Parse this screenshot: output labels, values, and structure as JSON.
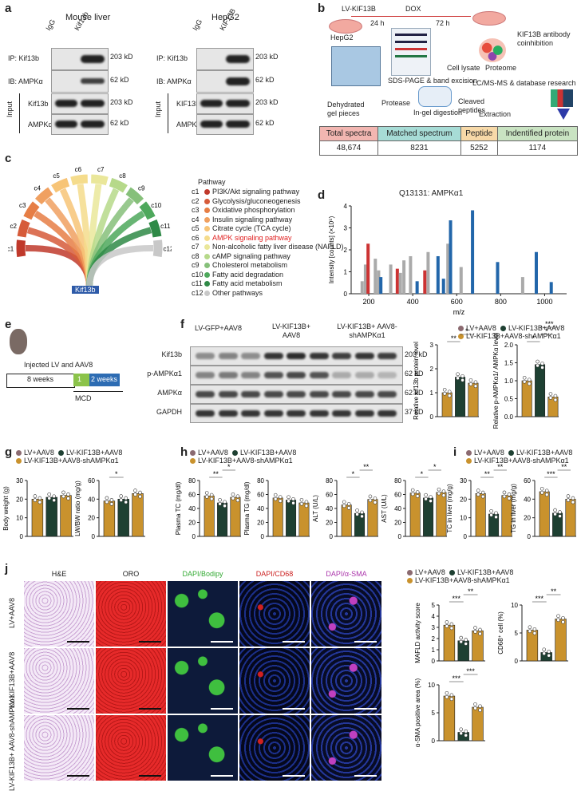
{
  "panel_letters": [
    "a",
    "b",
    "c",
    "d",
    "e",
    "f",
    "g",
    "h",
    "i",
    "j"
  ],
  "a": {
    "left_title": "Mouse liver",
    "right_title": "HepG2",
    "lanes_left": [
      "IgG",
      "Kif13b"
    ],
    "lanes_right": [
      "IgG",
      "KIF13B"
    ],
    "rows_left": [
      "IP: Kif13b",
      "IB: AMPKα",
      "Kif13b",
      "AMPKα"
    ],
    "rows_right": [
      "IP: Kif13b",
      "IB: AMPKα",
      "KIF13B",
      "AMPKα"
    ],
    "sizes": [
      "203 kD",
      "62 kD",
      "203 kD",
      "62 kD"
    ],
    "input_label": "Input"
  },
  "b": {
    "lv": "LV-KIF13B",
    "dox": "DOX",
    "h24": "24 h",
    "h72": "72 h",
    "hepg2": "HepG2",
    "cell_lysate": "Cell lysate",
    "proteome": "Proteome",
    "antibody": "KIF13B antibody coinhibition",
    "sds": "SDS-PAGE & band excision",
    "lcms": "LC/MS-MS & database research",
    "dehyd": "Dehydrated gel pieces",
    "protease": "Protease",
    "ingel": "In-gel digestion",
    "cleaved": "Cleaved peptides",
    "extraction": "Extraction",
    "table_headers": [
      "Total spectra",
      "Matched spectrum",
      "Peptide",
      "Indentified protein"
    ],
    "table_values": [
      "48,674",
      "8231",
      "5252",
      "1174"
    ],
    "table_colors": [
      "#f2b6b1",
      "#a7dcd6",
      "#f7d9a8",
      "#c9e3c2"
    ]
  },
  "c": {
    "center": "Kif13b",
    "pathway_title": "Pathway",
    "items": [
      {
        "id": "c1",
        "label": "PI3K/Akt signaling pathway",
        "color": "#c0392b"
      },
      {
        "id": "c2",
        "label": "Glycolysis/gluconeogenesis",
        "color": "#d65b3a"
      },
      {
        "id": "c3",
        "label": "Oxidative phosphorylation",
        "color": "#e67e45"
      },
      {
        "id": "c4",
        "label": "Insulin signaling pathway",
        "color": "#f0a060"
      },
      {
        "id": "c5",
        "label": "Citrate cycle (TCA cycle)",
        "color": "#f7c477"
      },
      {
        "id": "c6",
        "label": "AMPK signaling pathway",
        "color": "#f5dc8c",
        "highlight": "#e02020"
      },
      {
        "id": "c7",
        "label": "Non-alcoholic fatty liver disease (NAFLD)",
        "color": "#eae79a"
      },
      {
        "id": "c8",
        "label": "cAMP signaling pathway",
        "color": "#b6d98a"
      },
      {
        "id": "c9",
        "label": "Cholesterol metabolism",
        "color": "#86c07a"
      },
      {
        "id": "c10",
        "label": "Fatty acid degradation",
        "color": "#4ea85c"
      },
      {
        "id": "c11",
        "label": "Fatty acid metabolism",
        "color": "#2f8a47"
      },
      {
        "id": "c12",
        "label": "Other pathways",
        "color": "#c8c8c8"
      }
    ]
  },
  "d": {
    "title": "Q13131: AMPKα1",
    "ylabel": "Intensity [counts] (×10⁵)",
    "xlabel": "m/z",
    "xticks": [
      "200",
      "400",
      "600",
      "800",
      "1000"
    ],
    "yticks": [
      "0",
      "1",
      "2",
      "3",
      "4"
    ]
  },
  "e": {
    "weeks8": "8 weeks",
    "w1": "1",
    "w2": "2 weeks",
    "injected": "Injected LV and AAV8",
    "mcd": "MCD"
  },
  "f": {
    "groups": [
      "LV-GFP+AAV8",
      "LV-KIF13B+ AAV8",
      "LV-KIF13B+ AAV8-shAMPKα1"
    ],
    "rows": [
      "Kif13b",
      "p-AMPKα1",
      "AMPKα",
      "GAPDH"
    ],
    "sizes": [
      "203 kD",
      "62 kD",
      "62 kD",
      "37 kD"
    ]
  },
  "legend": {
    "g1": "LV+AAV8",
    "g2": "LV-KIF13B+AAV8",
    "g3": "LV-KIF13B+AAV8-shAMPKα1",
    "c1": "#8b6a70",
    "c2": "#1e4032",
    "c3": "#c9922d"
  },
  "bars": [
    {
      "id": "f1",
      "ylabel": "Relative kif13b protein level",
      "yticks": [
        "0",
        "1",
        "2",
        "3"
      ],
      "ymax": 3,
      "values": [
        1.0,
        1.65,
        1.4
      ],
      "sig": [
        "**",
        "*"
      ]
    },
    {
      "id": "f2",
      "ylabel": "Relative p-AMPKα1/ AMPKα level",
      "yticks": [
        "0.0",
        "0.5",
        "1.0",
        "1.5",
        "2.0"
      ],
      "ymax": 2,
      "values": [
        1.0,
        1.45,
        0.55
      ],
      "sig": [
        "*",
        "*",
        "***"
      ]
    },
    {
      "id": "g1",
      "ylabel": "Body weight (g)",
      "yticks": [
        "0",
        "10",
        "20",
        "30"
      ],
      "ymax": 30,
      "values": [
        20,
        21,
        22
      ],
      "sig": []
    },
    {
      "id": "g2",
      "ylabel": "LW/BW ratio (mg/g)",
      "yticks": [
        "0",
        "20",
        "40",
        "60"
      ],
      "ymax": 60,
      "values": [
        38,
        40,
        46
      ],
      "sig": [
        "*"
      ]
    },
    {
      "id": "h1",
      "ylabel": "Plasma TC (mg/dl)",
      "yticks": [
        "0",
        "20",
        "40",
        "60",
        "80"
      ],
      "ymax": 80,
      "values": [
        58,
        48,
        56
      ],
      "sig": [
        "**",
        "*"
      ]
    },
    {
      "id": "h2",
      "ylabel": "Plasma TG (mg/dl)",
      "yticks": [
        "0",
        "20",
        "40",
        "60",
        "80"
      ],
      "ymax": 80,
      "values": [
        55,
        52,
        48
      ],
      "sig": []
    },
    {
      "id": "h3",
      "ylabel": "ALT (U/L)",
      "yticks": [
        "0",
        "20",
        "40",
        "60",
        "80"
      ],
      "ymax": 80,
      "values": [
        45,
        33,
        53
      ],
      "sig": [
        "*",
        "**"
      ]
    },
    {
      "id": "h4",
      "ylabel": "AST (U/L)",
      "yticks": [
        "0",
        "20",
        "40",
        "60",
        "80"
      ],
      "ymax": 80,
      "values": [
        62,
        55,
        63
      ],
      "sig": [
        "*",
        "*"
      ]
    },
    {
      "id": "i1",
      "ylabel": "TC in liver (mg/g)",
      "yticks": [
        "0",
        "10",
        "20",
        "30"
      ],
      "ymax": 30,
      "values": [
        23,
        12,
        22
      ],
      "sig": [
        "**",
        "**"
      ]
    },
    {
      "id": "i2",
      "ylabel": "TG in liver (mg/g)",
      "yticks": [
        "0",
        "20",
        "40",
        "60"
      ],
      "ymax": 60,
      "values": [
        48,
        25,
        40
      ],
      "sig": [
        "***",
        "**"
      ]
    },
    {
      "id": "j1",
      "ylabel": "MAFLD activity score",
      "yticks": [
        "0",
        "1",
        "2",
        "3",
        "4",
        "5"
      ],
      "ymax": 5,
      "values": [
        3.2,
        1.8,
        2.7
      ],
      "sig": [
        "***",
        "**"
      ]
    },
    {
      "id": "j2",
      "ylabel": "CD68⁺ cell (%)",
      "yticks": [
        "0",
        "5",
        "10"
      ],
      "ymax": 12,
      "values": [
        5.5,
        1.5,
        7.5
      ],
      "sig": [
        "***",
        "**"
      ]
    },
    {
      "id": "j3",
      "ylabel": "α-SMA positive area (%)",
      "yticks": [
        "0",
        "5",
        "10"
      ],
      "ymax": 12,
      "values": [
        8,
        1.5,
        6
      ],
      "sig": [
        "***",
        "***"
      ]
    }
  ],
  "j": {
    "cols": [
      "H&E",
      "ORO",
      "DAPI/Bodipy",
      "DAPI/CD68",
      "DAPI/α-SMA"
    ],
    "rows": [
      "LV+AAV8",
      "LV-KIF13B+AAV8",
      "LV-KIF13B+ AAV8-shAMPKα1"
    ]
  }
}
